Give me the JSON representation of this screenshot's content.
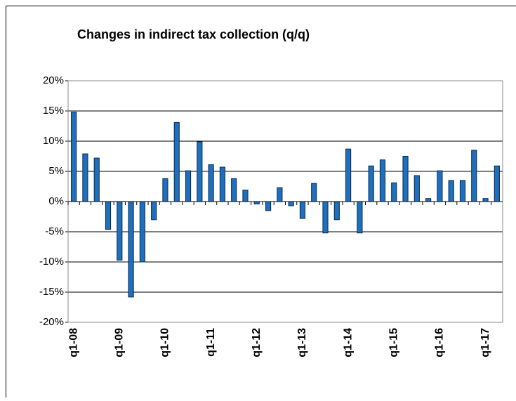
{
  "chart_data": {
    "type": "bar",
    "title": "Changes in indirect tax collection (q/q)",
    "categories": [
      "q1-08",
      null,
      null,
      null,
      "q1-09",
      null,
      null,
      null,
      "q1-10",
      null,
      null,
      null,
      "q1-11",
      null,
      null,
      null,
      "q1-12",
      null,
      null,
      null,
      "q1-13",
      null,
      null,
      null,
      "q1-14",
      null,
      null,
      null,
      "q1-15",
      null,
      null,
      null,
      "q1-16",
      null,
      null,
      null,
      "q1-17",
      null
    ],
    "values": [
      14.8,
      7.9,
      7.2,
      -4.6,
      -9.7,
      -15.8,
      -10,
      -3,
      3.8,
      13.1,
      5.1,
      9.9,
      6.1,
      5.7,
      3.8,
      1.9,
      -0.4,
      -1.5,
      2.3,
      -0.7,
      -2.8,
      3.0,
      -5.2,
      -3,
      8.7,
      -5.2,
      5.9,
      6.9,
      3.1,
      7.5,
      4.3,
      0.5,
      5.1,
      3.5,
      3.5,
      8.5,
      0.5,
      5.9
    ],
    "color": "#1f6fbf",
    "ylim": [
      -20,
      20
    ],
    "yticks": [
      {
        "value": -20,
        "label": "-20%"
      },
      {
        "value": -15,
        "label": "-15%"
      },
      {
        "value": -10,
        "label": "-10%"
      },
      {
        "value": -5,
        "label": "-5%"
      },
      {
        "value": 0,
        "label": "0%"
      },
      {
        "value": 5,
        "label": "5%"
      },
      {
        "value": 10,
        "label": "10%"
      },
      {
        "value": 15,
        "label": "15%"
      },
      {
        "value": 20,
        "label": "20%"
      }
    ],
    "grid": true
  }
}
